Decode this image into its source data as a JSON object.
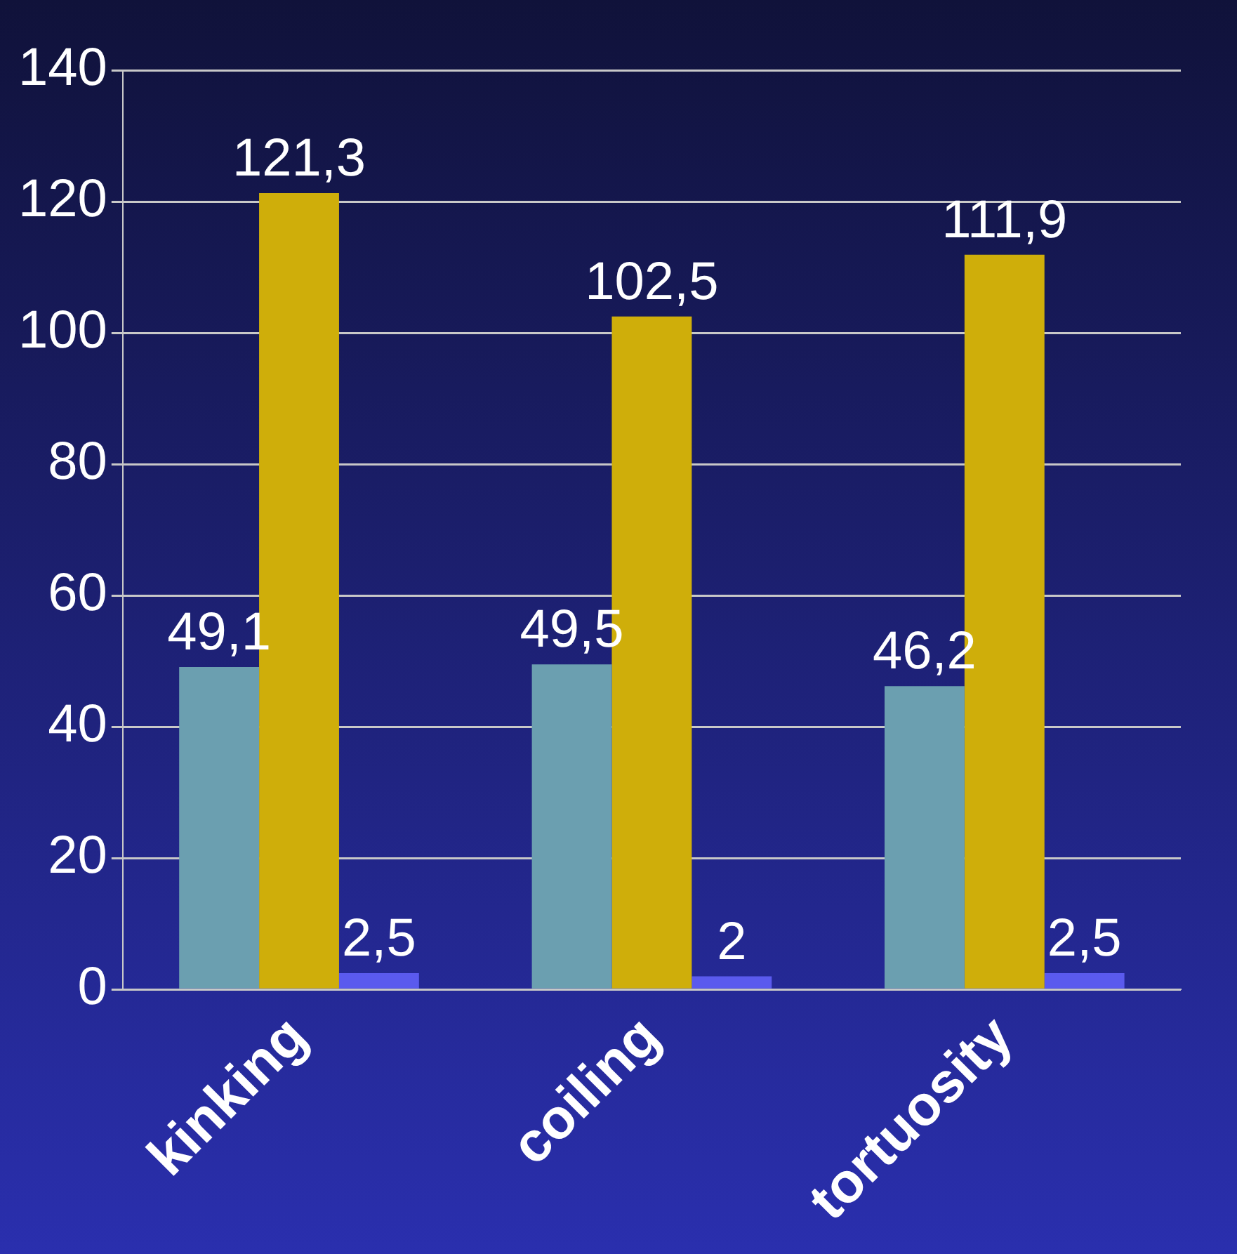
{
  "chart_data": {
    "type": "bar",
    "categories": [
      "kinking",
      "coiling",
      "tortuosity"
    ],
    "series": [
      {
        "color": "#6b9fb0",
        "values": [
          49.1,
          49.5,
          46.2
        ],
        "value_labels": [
          "49,1",
          "49,5",
          "46,2"
        ]
      },
      {
        "color": "#cfae0a",
        "values": [
          121.3,
          102.5,
          111.9
        ],
        "value_labels": [
          "121,3",
          "102,5",
          "111,9"
        ]
      },
      {
        "color": "#5a5aee",
        "values": [
          2.5,
          2,
          2.5
        ],
        "value_labels": [
          "2,5",
          "2",
          "2,5"
        ]
      }
    ],
    "ylim": [
      0,
      140
    ],
    "yticks": [
      0,
      20,
      40,
      60,
      80,
      100,
      120,
      140
    ],
    "grid": "y",
    "legend": false
  }
}
